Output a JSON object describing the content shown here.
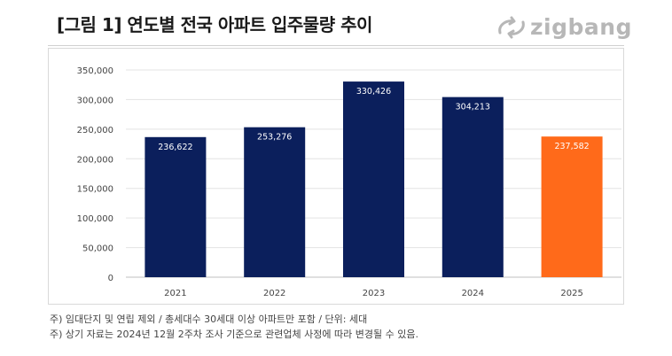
{
  "header": {
    "title": "[그림 1] 연도별 전국 아파트 입주물량 추이",
    "logo_text": "zigbang",
    "logo_icon": "zigbang-logo-icon"
  },
  "chart_data": {
    "type": "bar",
    "title": "",
    "xlabel": "",
    "ylabel": "",
    "categories": [
      "2021",
      "2022",
      "2023",
      "2024",
      "2025"
    ],
    "values": [
      236622,
      253276,
      330426,
      304213,
      237582
    ],
    "value_labels": [
      "236,622",
      "253,276",
      "330,426",
      "304,213",
      "237,582"
    ],
    "ylim": [
      0,
      350000
    ],
    "yticks": [
      0,
      50000,
      100000,
      150000,
      200000,
      250000,
      300000,
      350000
    ],
    "ytick_labels": [
      "0",
      "50,000",
      "100,000",
      "150,000",
      "200,000",
      "250,000",
      "300,000",
      "350,000"
    ],
    "grid": true,
    "bar_colors": [
      "#0b1f5c",
      "#0b1f5c",
      "#0b1f5c",
      "#0b1f5c",
      "#ff6a1a"
    ]
  },
  "footnotes": [
    "주) 임대단지 및 연립 제외 / 총세대수 30세대 이상 아파트만 포함 / 단위: 세대",
    "주) 상기 자료는 2024년 12월 2주차 조사 기준으로 관련업체 사정에 따라 변경될 수 있음."
  ]
}
